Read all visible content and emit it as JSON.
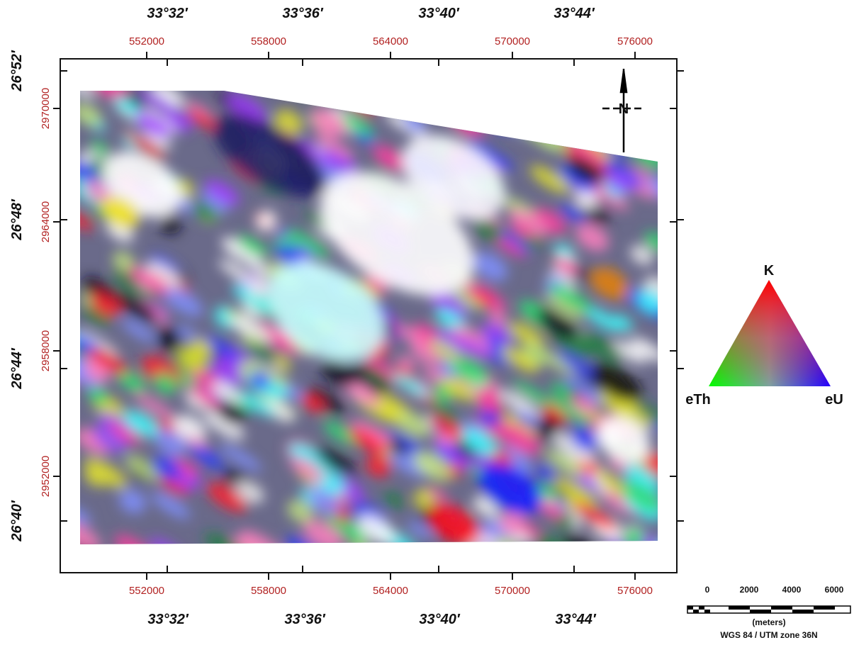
{
  "map": {
    "top_longitudes": [
      "33°32′",
      "33°36′",
      "33°40′",
      "33°44′"
    ],
    "top_eastings": [
      "552000",
      "558000",
      "564000",
      "570000",
      "576000"
    ],
    "bottom_eastings": [
      "552000",
      "558000",
      "564000",
      "570000",
      "576000"
    ],
    "bottom_longitudes": [
      "33°32′",
      "33°36′",
      "33°40′",
      "33°44′"
    ],
    "left_latitudes": [
      "26°52′",
      "26°48′",
      "26°44′",
      "26°40′"
    ],
    "left_northings": [
      "2970000",
      "2964000",
      "2958000",
      "2952000"
    ],
    "north_arrow": "N"
  },
  "legend": {
    "top": "K",
    "left": "eTh",
    "right": "eU"
  },
  "scale_bar": {
    "ticks": [
      "0",
      "2000",
      "4000",
      "6000"
    ],
    "unit": "(meters)",
    "projection": "WGS 84 / UTM zone 36N"
  }
}
